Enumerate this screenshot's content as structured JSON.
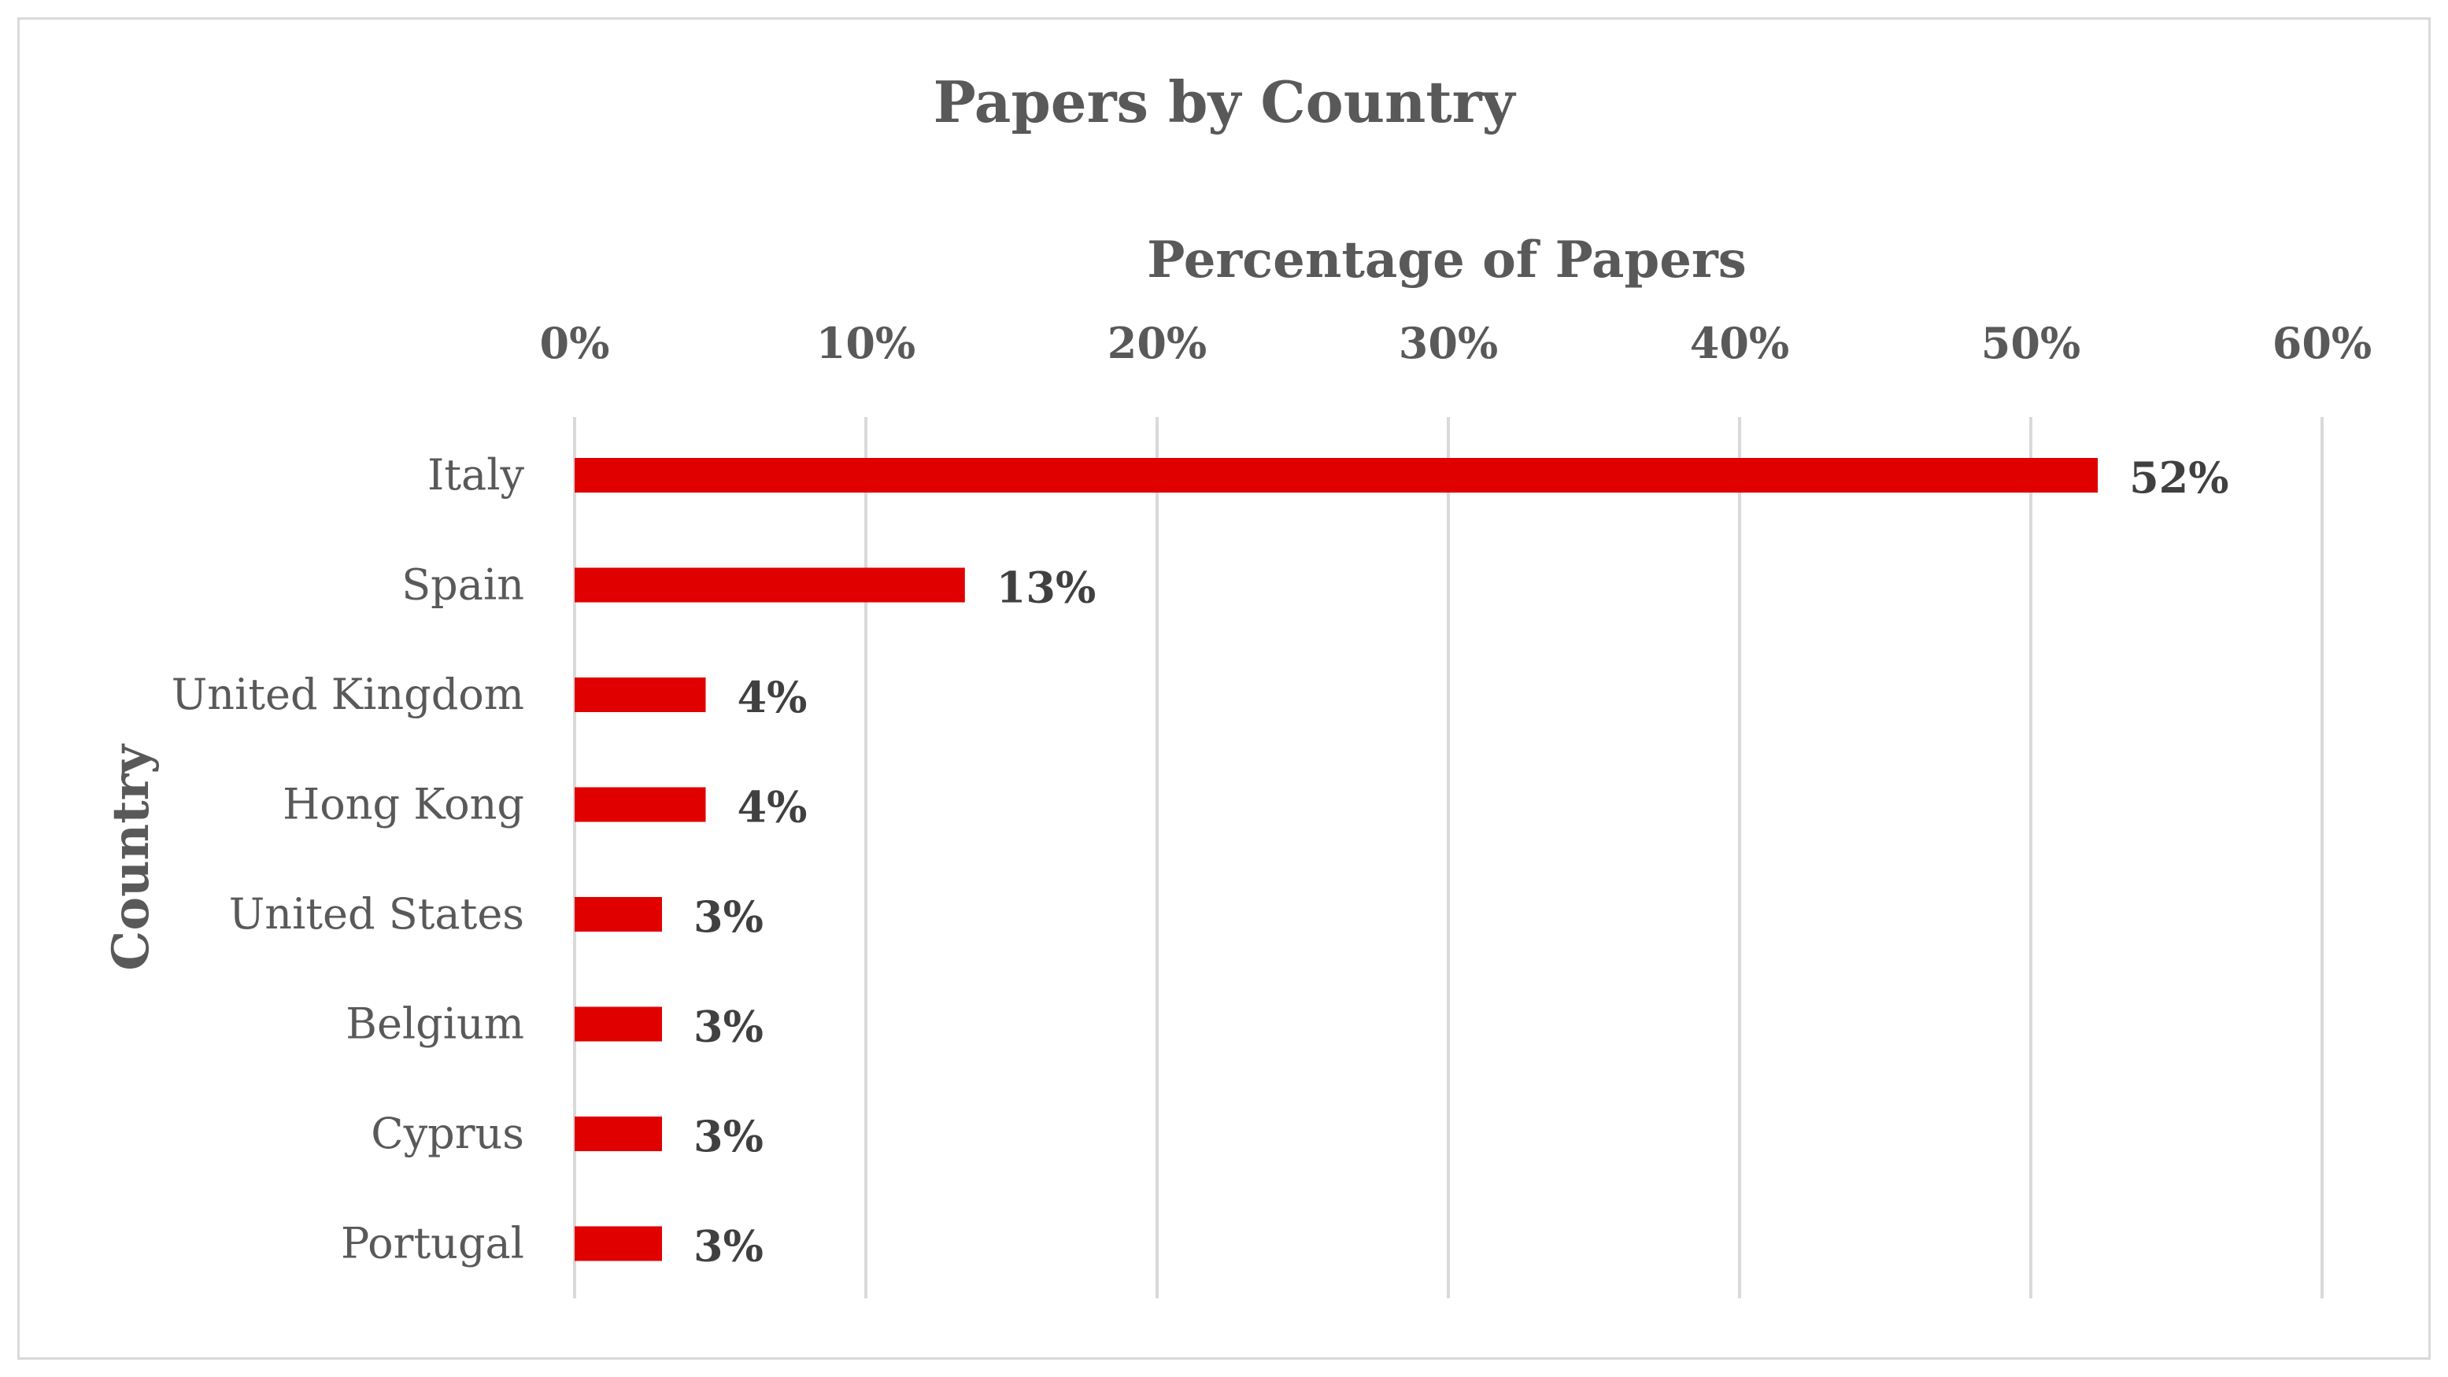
{
  "chart_data": {
    "type": "bar",
    "orientation": "horizontal",
    "title": "Papers by Country",
    "xlabel": "Percentage of Papers",
    "ylabel": "Country",
    "xaxis_position": "top",
    "categories": [
      "Italy",
      "Spain",
      "United Kingdom",
      "Hong Kong",
      "United States",
      "Belgium",
      "Cyprus",
      "Portugal"
    ],
    "values": [
      52.3,
      13.4,
      4.5,
      4.5,
      3.0,
      3.0,
      3.0,
      3.0
    ],
    "data_labels": [
      "52%",
      "13%",
      "4%",
      "4%",
      "3%",
      "3%",
      "3%",
      "3%"
    ],
    "xlim": [
      0,
      60
    ],
    "xticks": [
      0,
      10,
      20,
      30,
      40,
      50,
      60
    ],
    "xtick_labels": [
      "0%",
      "10%",
      "20%",
      "30%",
      "40%",
      "50%",
      "60%"
    ],
    "grid": true,
    "legend": "none",
    "colors": {
      "bar": "#e00000",
      "grid": "#d9d9d9",
      "text": "#595959",
      "data_label": "#404040"
    }
  }
}
